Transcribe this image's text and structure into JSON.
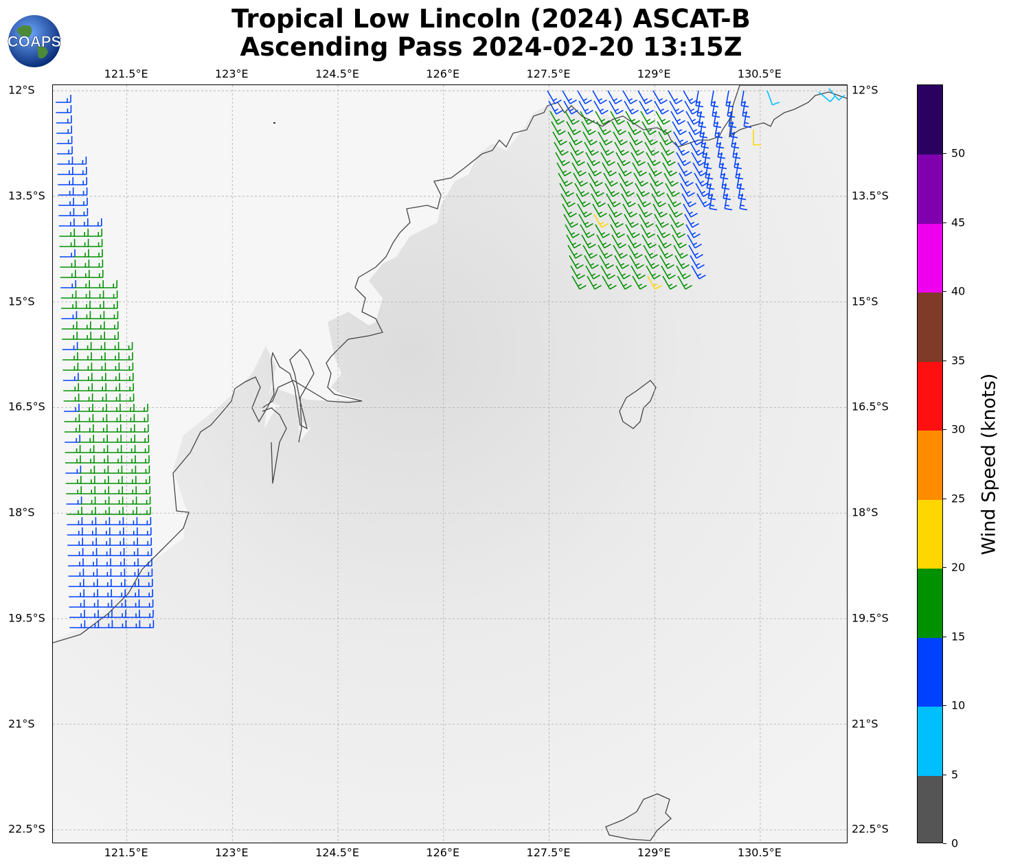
{
  "title_line1": "Tropical Low Lincoln (2024) ASCAT-B",
  "title_line2": "Ascending Pass 2024-02-20 13:15Z",
  "logo_text": "COAPS",
  "x_ticks": [
    "121.5°E",
    "123°E",
    "124.5°E",
    "126°E",
    "127.5°E",
    "129°E",
    "130.5°E"
  ],
  "y_ticks": [
    "12°S",
    "13.5°S",
    "15°S",
    "16.5°S",
    "18°S",
    "19.5°S",
    "21°S",
    "22.5°S"
  ],
  "colorbar": {
    "label": "Wind Speed (knots)",
    "ticks": [
      "0",
      "5",
      "10",
      "15",
      "20",
      "25",
      "30",
      "35",
      "40",
      "45",
      "50"
    ],
    "colors": [
      "#555555",
      "#00bfff",
      "#0040ff",
      "#009100",
      "#ffd700",
      "#ff8c00",
      "#ff1010",
      "#7f3a28",
      "#ee00ee",
      "#8000b0",
      "#2a0060"
    ]
  },
  "map": {
    "lon_range": [
      120.45,
      131.75
    ],
    "lat_range": [
      -22.7,
      -11.92
    ],
    "barb_colors": {
      "calm": "#00bfff",
      "light": "#0040ff",
      "moderate": "#009100",
      "fresh": "#ffd700"
    },
    "coast_color": "#444444"
  }
}
